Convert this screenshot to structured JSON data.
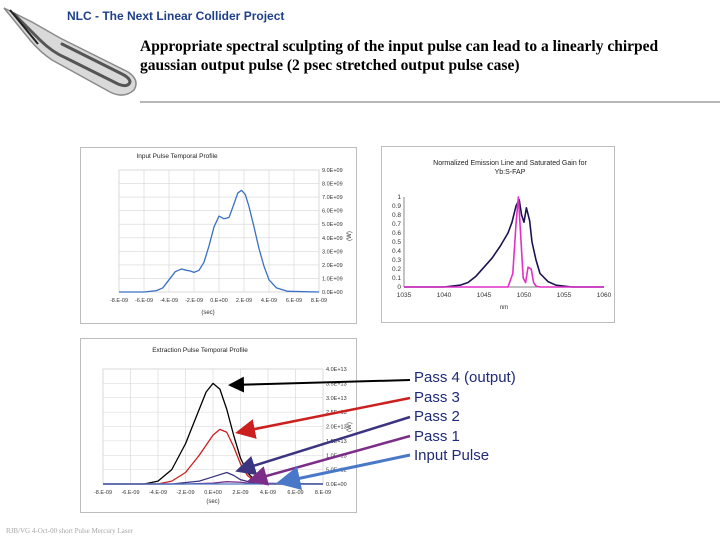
{
  "slide": {
    "header": "NLC - The Next Linear Collider Project",
    "title": "Appropriate spectral sculpting of the input pulse can lead to a linearly chirped gaussian output pulse (2 psec stretched output pulse case)",
    "footer": "RJB/VG 4-Oct-00 short Pulse Mercury Laser"
  },
  "legend": {
    "items": [
      {
        "label": "Pass 4 (output)",
        "color": "#000000"
      },
      {
        "label": "Pass 3",
        "color": "#cc1f1f"
      },
      {
        "label": "Pass 2",
        "color": "#3b3480"
      },
      {
        "label": "Pass 1",
        "color": "#7b2d88"
      },
      {
        "label": "Input Pulse",
        "color": "#4a78c8"
      }
    ]
  },
  "chart_data": [
    {
      "type": "line",
      "title": "Input Pulse Temporal Profile",
      "xlabel": "(sec)",
      "ylabel": "(W)",
      "x_ticks": [
        "-8.E-09",
        "-6.E-09",
        "-4.E-09",
        "-2.E-09",
        "0.E+00",
        "2.E-09",
        "4.E-09",
        "6.E-09",
        "8.E-09"
      ],
      "y_ticks": [
        "0.0E+00",
        "1.0E+09",
        "2.0E+09",
        "3.0E+09",
        "4.0E+09",
        "5.0E+09",
        "6.0E+09",
        "7.0E+09",
        "8.0E+09",
        "9.0E+09"
      ],
      "xlim": [
        -8e-09,
        8e-09
      ],
      "ylim": [
        0,
        9000000000.0
      ],
      "grid": true,
      "series": [
        {
          "color": "#3a6fc4",
          "x": [
            -8e-09,
            -6e-09,
            -5e-09,
            -4.5e-09,
            -4e-09,
            -3.5e-09,
            -3e-09,
            -2.6e-09,
            -2.3e-09,
            -2e-09,
            -1.6e-09,
            -1.2e-09,
            -8e-10,
            -4e-10,
            0,
            4e-10,
            8e-10,
            1.2e-09,
            1.5e-09,
            1.8e-09,
            2.1e-09,
            2.4e-09,
            2.8e-09,
            3.2e-09,
            3.6e-09,
            4e-09,
            4.6e-09,
            5.5e-09,
            8e-09
          ],
          "y": [
            0,
            0,
            100000000.0,
            300000000.0,
            900000000.0,
            1500000000.0,
            1700000000.0,
            1600000000.0,
            1550000000.0,
            1450000000.0,
            1600000000.0,
            2200000000.0,
            3400000000.0,
            4800000000.0,
            5600000000.0,
            5400000000.0,
            5500000000.0,
            6500000000.0,
            7300000000.0,
            7500000000.0,
            7200000000.0,
            6300000000.0,
            4800000000.0,
            3200000000.0,
            1900000000.0,
            900000000.0,
            300000000.0,
            50000000.0,
            0
          ]
        }
      ]
    },
    {
      "type": "line",
      "title": "Normalized Emission Line and Saturated Gain for Yb:S-FAP",
      "xlabel": "nm",
      "x_ticks": [
        "1035",
        "1040",
        "1045",
        "1050",
        "1055",
        "1060"
      ],
      "y_ticks": [
        "0",
        "0.1",
        "0.2",
        "0.3",
        "0.4",
        "0.5",
        "0.6",
        "0.7",
        "0.8",
        "0.9",
        "1"
      ],
      "xlim": [
        1035,
        1060
      ],
      "ylim": [
        0,
        1
      ],
      "grid": false,
      "series": [
        {
          "color": "#1a1550",
          "x": [
            1035,
            1040,
            1042,
            1043,
            1044,
            1045,
            1046,
            1047,
            1048,
            1048.5,
            1049,
            1049.4,
            1049.7,
            1050,
            1050.3,
            1050.7,
            1051,
            1051.5,
            1052,
            1053,
            1054,
            1056,
            1060
          ],
          "y": [
            0,
            0,
            0.02,
            0.05,
            0.12,
            0.22,
            0.32,
            0.45,
            0.6,
            0.72,
            0.9,
            0.97,
            0.8,
            0.72,
            0.88,
            0.74,
            0.5,
            0.3,
            0.15,
            0.06,
            0.02,
            0,
            0
          ]
        },
        {
          "color": "#e030c8",
          "x": [
            1035,
            1048,
            1048.6,
            1049.0,
            1049.3,
            1049.6,
            1049.9,
            1050.2,
            1050.5,
            1050.9,
            1051.2,
            1051.5,
            1052,
            1060
          ],
          "y": [
            0,
            0,
            0.15,
            0.7,
            1.0,
            0.55,
            0.1,
            0.05,
            0.22,
            0.2,
            0.05,
            0.01,
            0,
            0
          ]
        }
      ]
    },
    {
      "type": "line",
      "title": "Extraction Pulse Temporal Profile",
      "xlabel": "(sec)",
      "ylabel": "(W)",
      "x_ticks": [
        "-8.E-09",
        "-6.E-09",
        "-4.E-09",
        "-2.E-09",
        "0.E+00",
        "2.E-09",
        "4.E-09",
        "6.E-09",
        "8.E-09"
      ],
      "y_ticks": [
        "0.0E+00",
        "5.0E+12",
        "1.0E+13",
        "1.5E+13",
        "2.0E+13",
        "2.5E+13",
        "3.0E+13",
        "3.5E+13",
        "4.0E+13"
      ],
      "xlim": [
        -8e-09,
        8e-09
      ],
      "ylim": [
        0,
        40000000000000.0
      ],
      "grid": true,
      "series": [
        {
          "name": "Pass 4 (output)",
          "color": "#000000",
          "x": [
            -8e-09,
            -5e-09,
            -4e-09,
            -3e-09,
            -2e-09,
            -1e-09,
            -5e-10,
            0,
            5e-10,
            1e-09,
            1.5e-09,
            2e-09,
            2.5e-09,
            3e-09,
            4e-09,
            8e-09
          ],
          "y": [
            0,
            0,
            1000000000000.0,
            5000000000000.0,
            14000000000000.0,
            26000000000000.0,
            32000000000000.0,
            35000000000000.0,
            33000000000000.0,
            26000000000000.0,
            17000000000000.0,
            9000000000000.0,
            4000000000000.0,
            1500000000000.0,
            0,
            0
          ]
        },
        {
          "name": "Pass 3",
          "color": "#cc1f1f",
          "x": [
            -8e-09,
            -4e-09,
            -3e-09,
            -2e-09,
            -1e-09,
            0,
            5e-10,
            1e-09,
            1.5e-09,
            2e-09,
            2.5e-09,
            3e-09,
            4e-09,
            8e-09
          ],
          "y": [
            0,
            0,
            1000000000000.0,
            4000000000000.0,
            10000000000000.0,
            17000000000000.0,
            19000000000000.0,
            18000000000000.0,
            13000000000000.0,
            7000000000000.0,
            3000000000000.0,
            1000000000000.0,
            0,
            0
          ]
        },
        {
          "name": "Pass 2",
          "color": "#3b3480",
          "x": [
            -8e-09,
            -3e-09,
            -1e-09,
            0,
            1e-09,
            1.5e-09,
            2e-09,
            3e-09,
            8e-09
          ],
          "y": [
            0,
            0,
            1000000000000.0,
            2500000000000.0,
            4000000000000.0,
            3000000000000.0,
            1500000000000.0,
            300000000000.0,
            0
          ]
        },
        {
          "name": "Pass 1",
          "color": "#7b2d88",
          "x": [
            -8e-09,
            -2e-09,
            0,
            1e-09,
            2e-09,
            3e-09,
            8e-09
          ],
          "y": [
            0,
            0,
            300000000000.0,
            800000000000.0,
            600000000000.0,
            100000000000.0,
            0
          ]
        },
        {
          "name": "Input Pulse",
          "color": "#4a78c8",
          "x": [
            -8e-09,
            8e-09
          ],
          "y": [
            0,
            0
          ]
        }
      ]
    }
  ]
}
